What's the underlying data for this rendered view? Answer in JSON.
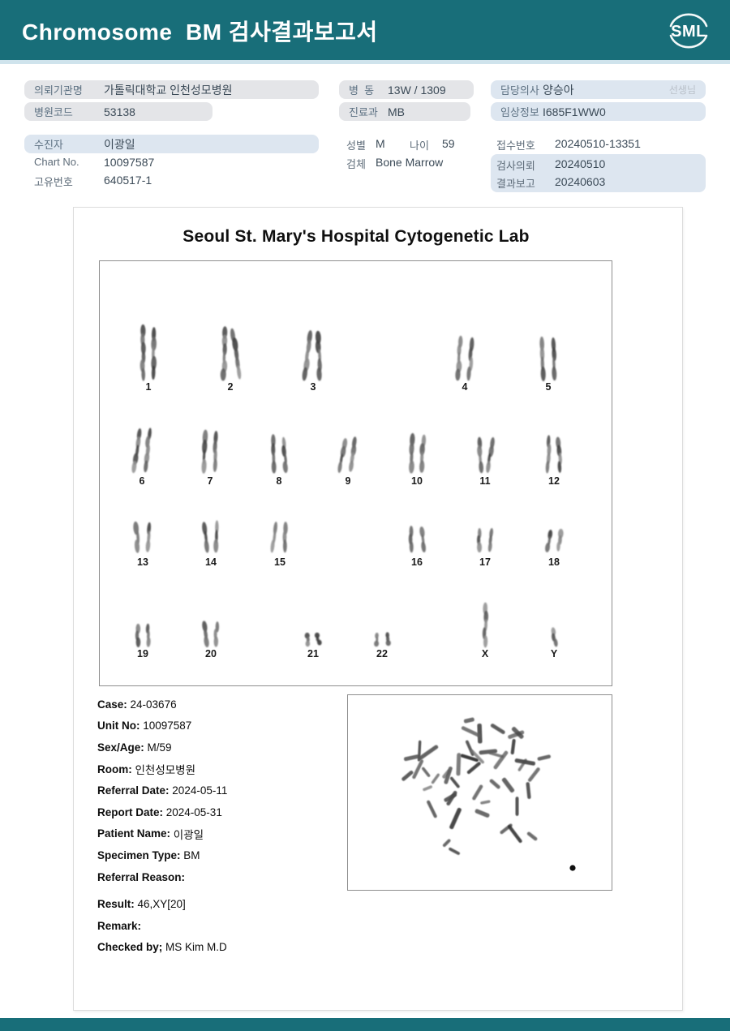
{
  "colors": {
    "header_teal": "#186e79",
    "underline_blue": "#cfe3ec",
    "box_gray": "#e4e5e8",
    "box_blue": "#dde6f0"
  },
  "header": {
    "title": "Chromosome  BM 검사결과보고서",
    "logo_text": "SML"
  },
  "info": {
    "org": {
      "label": "의뢰기관명",
      "value": "가톨릭대학교 인천성모병원"
    },
    "hospital_code": {
      "label": "병원코드",
      "value": "53138"
    },
    "ward": {
      "label": "병  동",
      "value": "13W / 1309"
    },
    "department": {
      "label": "진료과",
      "value": "MB"
    },
    "doctor": {
      "label": "담당의사",
      "value": "양승아",
      "suffix": "선생님"
    },
    "clinical_info": {
      "label": "임상정보",
      "value": "I685F1WW0"
    },
    "patient": {
      "label": "수진자",
      "value": "이광일"
    },
    "chart_no": {
      "label": "Chart No.",
      "value": "10097587"
    },
    "unique_no": {
      "label": "고유번호",
      "value": "640517-1"
    },
    "sex": {
      "label": "성별",
      "value": "M"
    },
    "age": {
      "label": "나이",
      "value": "59"
    },
    "specimen": {
      "label": "검체",
      "value": "Bone Marrow"
    },
    "receipt_no": {
      "label": "접수번호",
      "value": "20240510-13351"
    },
    "request_date": {
      "label": "검사의뢰",
      "value": "20240510"
    },
    "report_date": {
      "label": "결과보고",
      "value": "20240603"
    }
  },
  "document": {
    "lab_title": "Seoul St. Mary's Hospital Cytogenetic Lab",
    "karyotype_labels": [
      [
        "1",
        "2",
        "3",
        "4",
        "5"
      ],
      [
        "6",
        "7",
        "8",
        "9",
        "10",
        "11",
        "12"
      ],
      [
        "13",
        "14",
        "15",
        "16",
        "17",
        "18"
      ],
      [
        "19",
        "20",
        "21",
        "22",
        "X",
        "Y"
      ]
    ],
    "details": [
      {
        "label": "Case:",
        "value": "24-03676"
      },
      {
        "label": "Unit No:",
        "value": "10097587"
      },
      {
        "label": "Sex/Age:",
        "value": "M/59"
      },
      {
        "label": "Room:",
        "value": "인천성모병원"
      },
      {
        "label": "Referral Date:",
        "value": "2024-05-11"
      },
      {
        "label": "Report Date:",
        "value": "2024-05-31"
      },
      {
        "label": "Patient Name:",
        "value": "이광일"
      },
      {
        "label": "Specimen Type:",
        "value": "BM"
      },
      {
        "label": "Referral Reason:",
        "value": ""
      }
    ],
    "results": [
      {
        "label": "Result:",
        "value": "46,XY[20]"
      },
      {
        "label": "Remark:",
        "value": ""
      },
      {
        "label": "Checked by;",
        "value": "MS Kim M.D"
      }
    ]
  }
}
